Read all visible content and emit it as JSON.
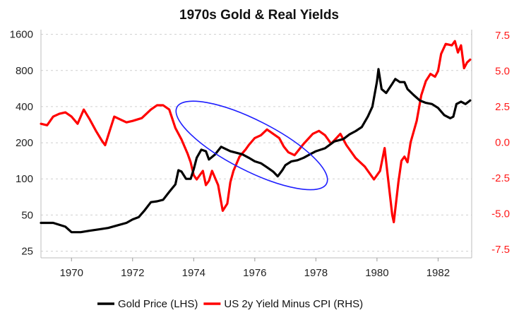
{
  "chart_data": {
    "type": "line",
    "title": "1970s Gold & Real Yields",
    "x_range": [
      1969.0,
      1983.1
    ],
    "x_ticks": [
      "1970",
      "1972",
      "1974",
      "1976",
      "1978",
      "1980",
      "1982"
    ],
    "left_axis": {
      "scale": "log",
      "range": [
        22,
        1750
      ],
      "ticks": [
        "25",
        "50",
        "100",
        "200",
        "400",
        "800",
        "1600"
      ]
    },
    "right_axis": {
      "scale": "linear",
      "range": [
        -8.1,
        7.9
      ],
      "ticks": [
        "-7.5",
        "-5.0",
        "-2.5",
        "0.0",
        "2.5",
        "5.0",
        "7.5"
      ],
      "color": "#ff1a1a"
    },
    "grid": "horizontal-dashed",
    "legend_position": "bottom-center",
    "series": [
      {
        "name": "Gold Price (LHS)",
        "axis": "left",
        "color": "#000000",
        "points": [
          [
            1969.0,
            43
          ],
          [
            1969.4,
            43
          ],
          [
            1969.8,
            40
          ],
          [
            1970.0,
            36
          ],
          [
            1970.3,
            36
          ],
          [
            1970.6,
            37
          ],
          [
            1970.9,
            38
          ],
          [
            1971.2,
            39
          ],
          [
            1971.5,
            41
          ],
          [
            1971.8,
            43
          ],
          [
            1972.0,
            46
          ],
          [
            1972.2,
            48
          ],
          [
            1972.4,
            55
          ],
          [
            1972.6,
            64
          ],
          [
            1972.8,
            65
          ],
          [
            1973.0,
            67
          ],
          [
            1973.2,
            78
          ],
          [
            1973.4,
            90
          ],
          [
            1973.5,
            118
          ],
          [
            1973.6,
            115
          ],
          [
            1973.75,
            100
          ],
          [
            1973.9,
            100
          ],
          [
            1974.0,
            120
          ],
          [
            1974.1,
            150
          ],
          [
            1974.25,
            175
          ],
          [
            1974.4,
            170
          ],
          [
            1974.5,
            145
          ],
          [
            1974.7,
            160
          ],
          [
            1974.9,
            185
          ],
          [
            1975.0,
            180
          ],
          [
            1975.2,
            170
          ],
          [
            1975.4,
            165
          ],
          [
            1975.6,
            160
          ],
          [
            1975.8,
            150
          ],
          [
            1976.0,
            140
          ],
          [
            1976.2,
            135
          ],
          [
            1976.4,
            125
          ],
          [
            1976.6,
            115
          ],
          [
            1976.75,
            105
          ],
          [
            1976.9,
            118
          ],
          [
            1977.0,
            130
          ],
          [
            1977.2,
            140
          ],
          [
            1977.4,
            143
          ],
          [
            1977.6,
            150
          ],
          [
            1977.8,
            160
          ],
          [
            1978.0,
            170
          ],
          [
            1978.3,
            180
          ],
          [
            1978.6,
            205
          ],
          [
            1978.9,
            215
          ],
          [
            1979.1,
            235
          ],
          [
            1979.3,
            250
          ],
          [
            1979.5,
            270
          ],
          [
            1979.7,
            330
          ],
          [
            1979.85,
            400
          ],
          [
            1980.0,
            650
          ],
          [
            1980.05,
            820
          ],
          [
            1980.15,
            560
          ],
          [
            1980.3,
            520
          ],
          [
            1980.5,
            620
          ],
          [
            1980.6,
            680
          ],
          [
            1980.75,
            640
          ],
          [
            1980.9,
            640
          ],
          [
            1981.0,
            560
          ],
          [
            1981.2,
            500
          ],
          [
            1981.4,
            450
          ],
          [
            1981.6,
            430
          ],
          [
            1981.8,
            420
          ],
          [
            1982.0,
            390
          ],
          [
            1982.2,
            340
          ],
          [
            1982.4,
            320
          ],
          [
            1982.5,
            330
          ],
          [
            1982.6,
            420
          ],
          [
            1982.75,
            440
          ],
          [
            1982.9,
            420
          ],
          [
            1983.05,
            450
          ]
        ]
      },
      {
        "name": "US 2y Yield Minus CPI (RHS)",
        "axis": "right",
        "color": "#ff0000",
        "points": [
          [
            1969.0,
            1.3
          ],
          [
            1969.2,
            1.2
          ],
          [
            1969.4,
            1.8
          ],
          [
            1969.6,
            2.0
          ],
          [
            1969.8,
            2.1
          ],
          [
            1970.0,
            1.8
          ],
          [
            1970.2,
            1.3
          ],
          [
            1970.4,
            2.3
          ],
          [
            1970.6,
            1.6
          ],
          [
            1970.8,
            0.8
          ],
          [
            1971.0,
            0.1
          ],
          [
            1971.1,
            -0.2
          ],
          [
            1971.25,
            0.8
          ],
          [
            1971.4,
            1.8
          ],
          [
            1971.6,
            1.6
          ],
          [
            1971.8,
            1.4
          ],
          [
            1972.0,
            1.5
          ],
          [
            1972.3,
            1.7
          ],
          [
            1972.6,
            2.3
          ],
          [
            1972.8,
            2.6
          ],
          [
            1973.0,
            2.6
          ],
          [
            1973.2,
            2.3
          ],
          [
            1973.4,
            1.0
          ],
          [
            1973.6,
            0.2
          ],
          [
            1973.8,
            -0.8
          ],
          [
            1973.9,
            -1.4
          ],
          [
            1974.0,
            -2.3
          ],
          [
            1974.1,
            -2.6
          ],
          [
            1974.3,
            -2.0
          ],
          [
            1974.4,
            -3.0
          ],
          [
            1974.5,
            -2.7
          ],
          [
            1974.6,
            -2.0
          ],
          [
            1974.8,
            -3.0
          ],
          [
            1974.95,
            -4.8
          ],
          [
            1975.1,
            -4.3
          ],
          [
            1975.2,
            -2.8
          ],
          [
            1975.3,
            -2.0
          ],
          [
            1975.5,
            -1.0
          ],
          [
            1975.7,
            -0.5
          ],
          [
            1975.8,
            -0.2
          ],
          [
            1976.0,
            0.3
          ],
          [
            1976.2,
            0.5
          ],
          [
            1976.4,
            0.9
          ],
          [
            1976.6,
            0.6
          ],
          [
            1976.8,
            0.3
          ],
          [
            1976.95,
            -0.3
          ],
          [
            1977.1,
            -0.7
          ],
          [
            1977.3,
            -0.9
          ],
          [
            1977.6,
            -0.1
          ],
          [
            1977.9,
            0.6
          ],
          [
            1978.1,
            0.8
          ],
          [
            1978.3,
            0.5
          ],
          [
            1978.5,
            -0.1
          ],
          [
            1978.8,
            0.6
          ],
          [
            1979.0,
            -0.2
          ],
          [
            1979.3,
            -1.1
          ],
          [
            1979.6,
            -1.7
          ],
          [
            1979.9,
            -2.6
          ],
          [
            1980.1,
            -2.0
          ],
          [
            1980.25,
            -0.4
          ],
          [
            1980.35,
            -2.3
          ],
          [
            1980.5,
            -5.1
          ],
          [
            1980.55,
            -5.6
          ],
          [
            1980.7,
            -2.8
          ],
          [
            1980.8,
            -1.3
          ],
          [
            1980.9,
            -1.0
          ],
          [
            1981.0,
            -1.4
          ],
          [
            1981.1,
            0.0
          ],
          [
            1981.3,
            1.5
          ],
          [
            1981.45,
            3.3
          ],
          [
            1981.6,
            4.3
          ],
          [
            1981.75,
            4.8
          ],
          [
            1981.9,
            4.6
          ],
          [
            1982.0,
            5.0
          ],
          [
            1982.1,
            6.2
          ],
          [
            1982.25,
            6.9
          ],
          [
            1982.45,
            6.8
          ],
          [
            1982.55,
            7.1
          ],
          [
            1982.65,
            6.3
          ],
          [
            1982.75,
            6.8
          ],
          [
            1982.85,
            5.2
          ],
          [
            1982.95,
            5.6
          ],
          [
            1983.05,
            5.8
          ]
        ]
      }
    ],
    "annotations": [
      {
        "type": "ellipse",
        "color": "#1f1fff",
        "center": [
          1975.9,
          190
        ],
        "radius_years": 2.75,
        "rotation_deg": 27
      }
    ]
  }
}
